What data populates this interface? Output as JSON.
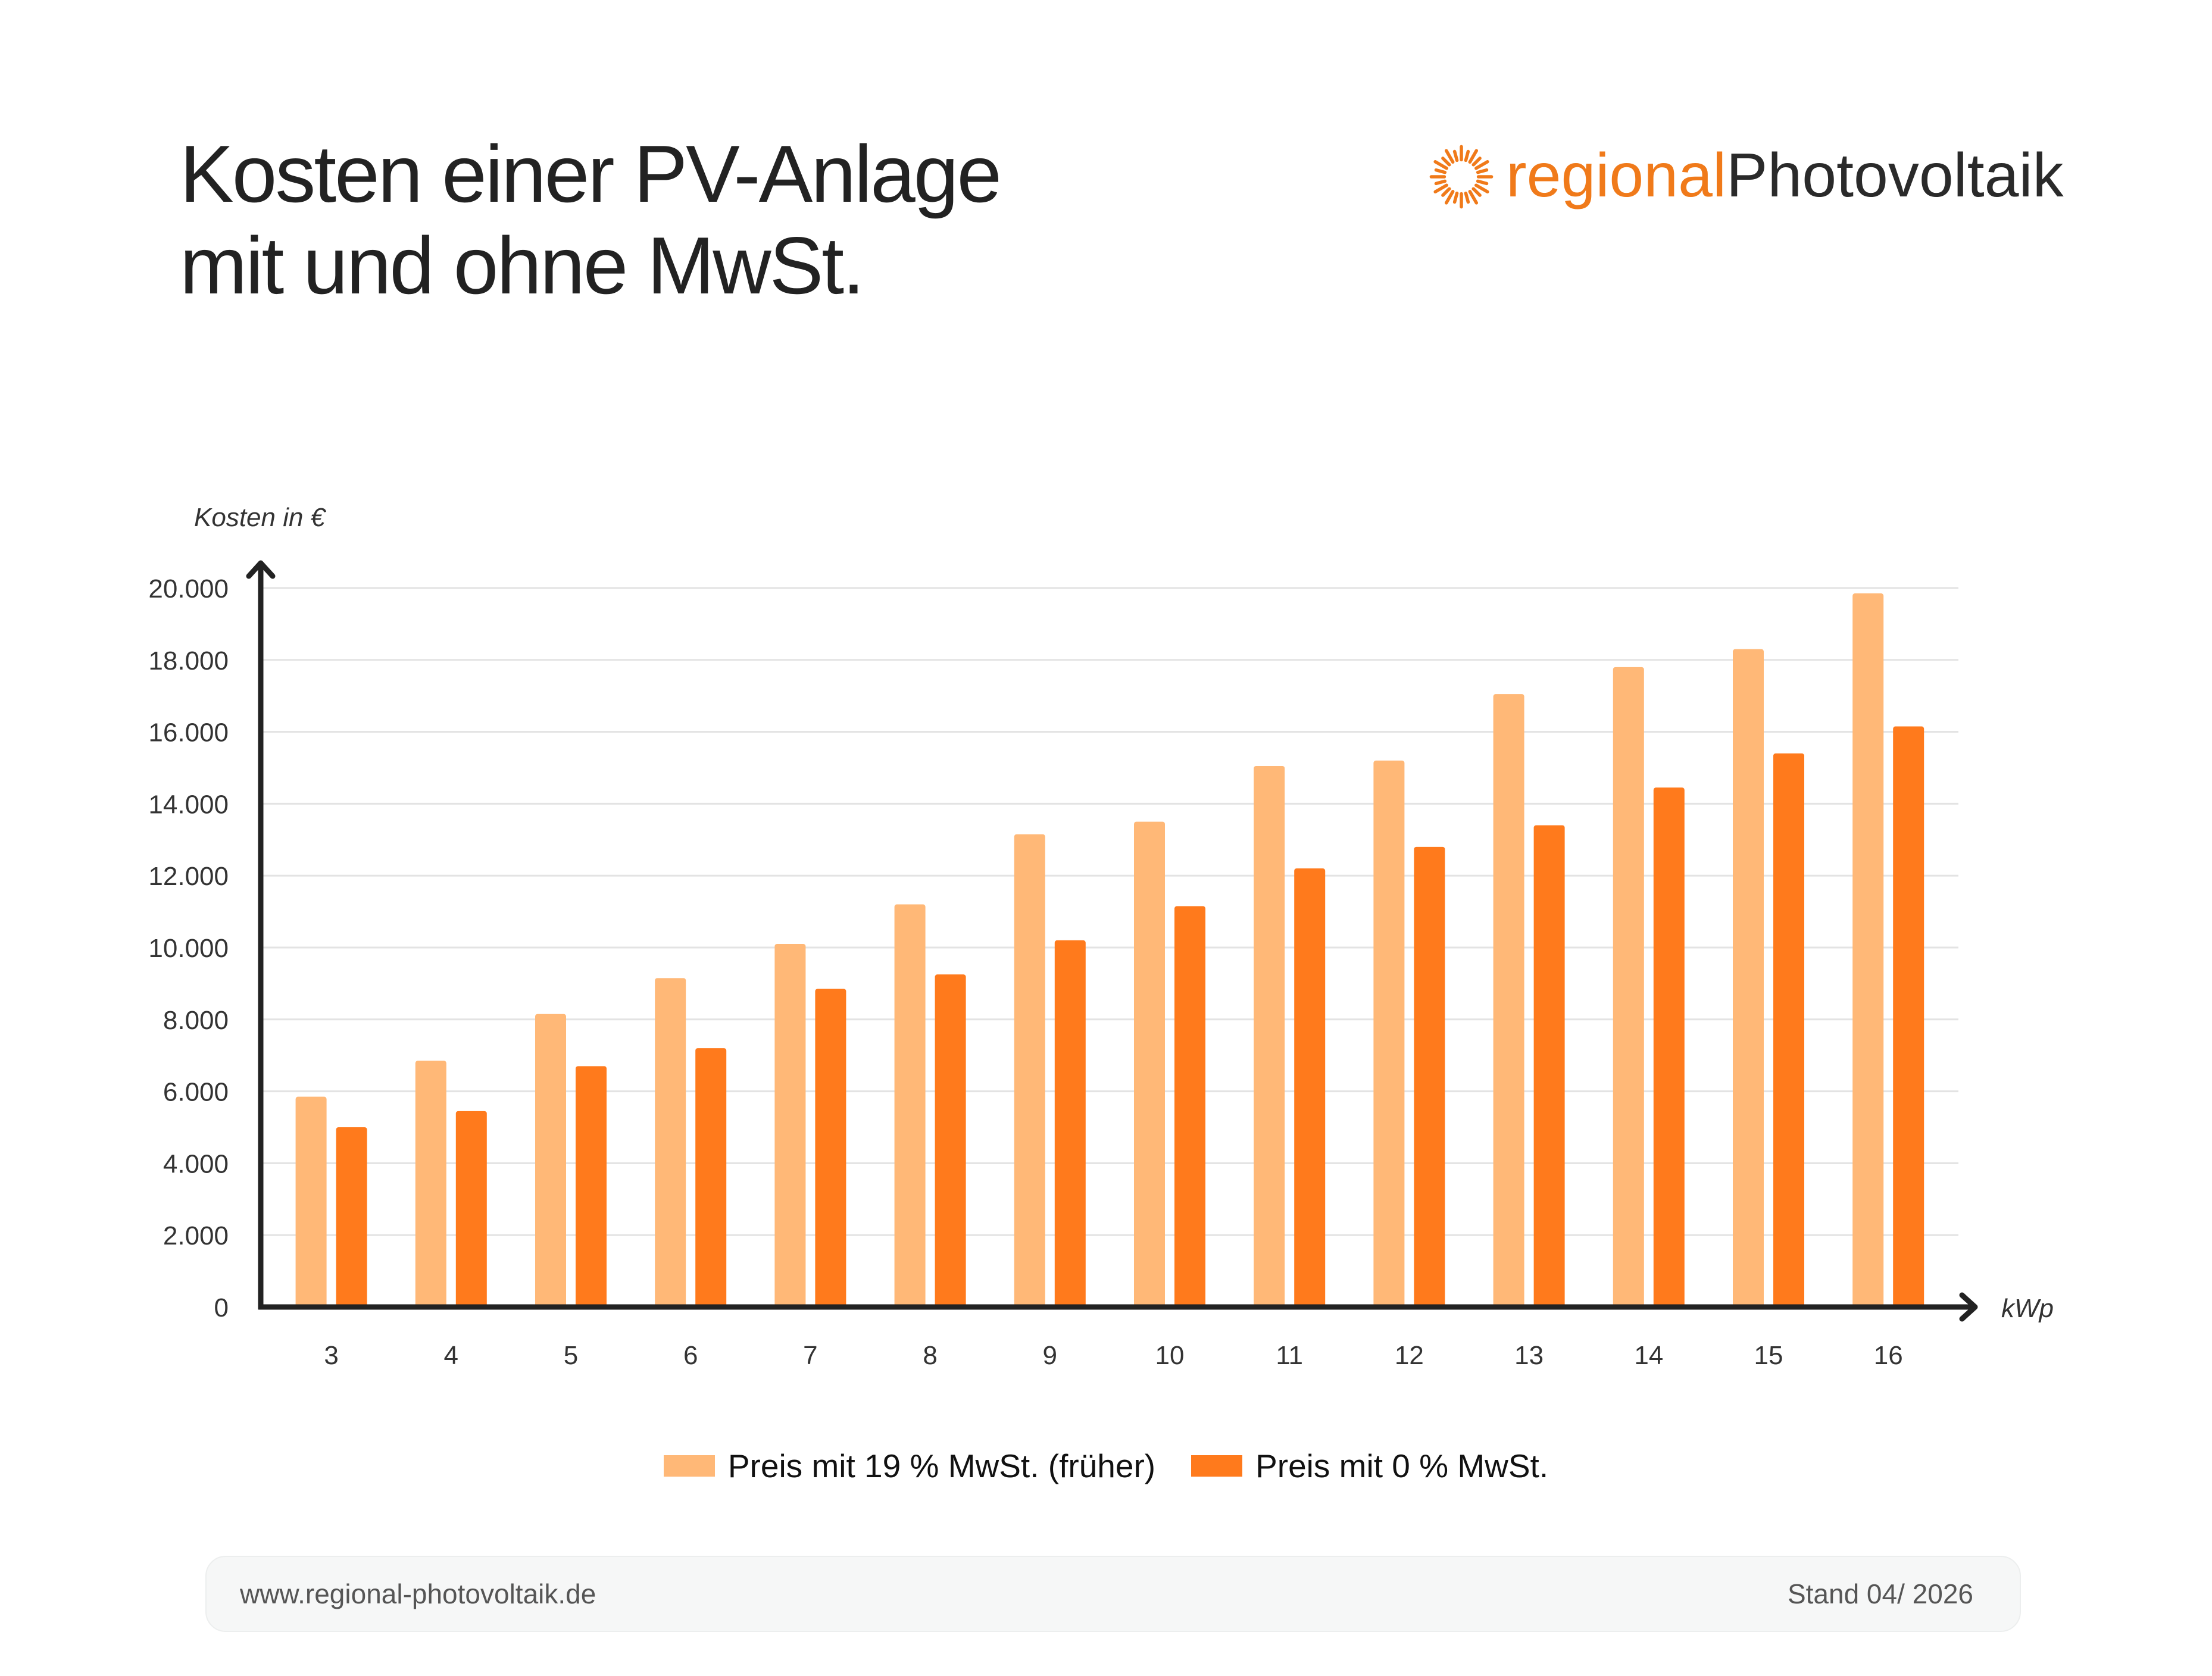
{
  "header": {
    "title_line1": "Kosten einer PV-Anlage",
    "title_line2": "mit und ohne MwSt."
  },
  "brand": {
    "part1": "regional",
    "part2": "Photovoltaik",
    "icon": "sun-icon",
    "accent_color": "#f07a1a"
  },
  "chart_data": {
    "type": "bar",
    "ylabel": "Kosten in €",
    "xlabel": "kWp",
    "categories": [
      "3",
      "4",
      "5",
      "6",
      "7",
      "8",
      "9",
      "10",
      "11",
      "12",
      "13",
      "14",
      "15",
      "16"
    ],
    "y_ticks": [
      "0",
      "2.000",
      "4.000",
      "6.000",
      "8.000",
      "10.000",
      "12.000",
      "14.000",
      "16.000",
      "18.000",
      "20.000"
    ],
    "ylim": [
      0,
      20000
    ],
    "grid": true,
    "legend_position": "bottom",
    "series": [
      {
        "name": "Preis mit 19 % MwSt. (früher)",
        "color": "#ffb877",
        "values": [
          5850,
          6850,
          8150,
          9150,
          10100,
          11200,
          13150,
          13500,
          15050,
          15200,
          17050,
          17800,
          18300,
          19850
        ]
      },
      {
        "name": "Preis mit 0 % MwSt.",
        "color": "#ff7a1c",
        "values": [
          5000,
          5450,
          6700,
          7200,
          8850,
          9250,
          10200,
          11150,
          12200,
          12800,
          13400,
          14450,
          15400,
          16150
        ]
      }
    ]
  },
  "footer": {
    "url": "www.regional-photovoltaik.de",
    "date": "Stand 04/ 2026"
  }
}
